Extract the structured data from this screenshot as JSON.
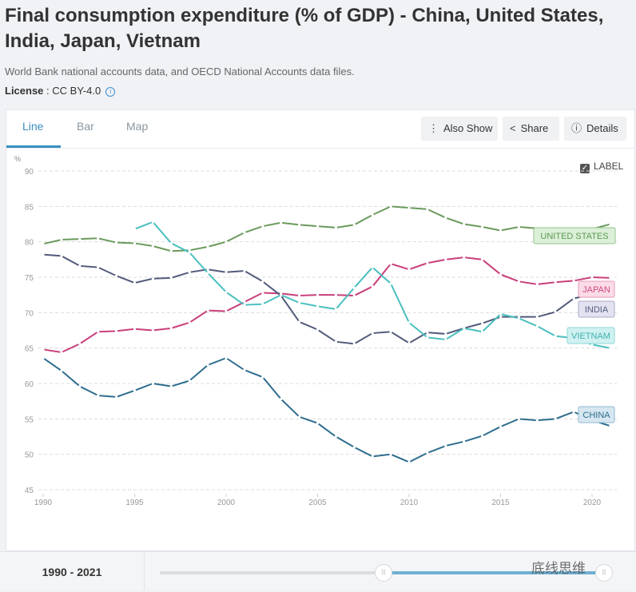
{
  "header": {
    "title": "Final consumption expenditure (% of GDP) - China, United States, India, Japan, Vietnam",
    "source": "World Bank national accounts data, and OECD National Accounts data files.",
    "license_label": "License",
    "license_value": " : CC BY-4.0",
    "info_icon": "i"
  },
  "tabs": [
    {
      "label": "Line"
    },
    {
      "label": "Bar"
    },
    {
      "label": "Map"
    }
  ],
  "toolbar": {
    "also_show": "Also Show",
    "share": "Share",
    "details": "Details"
  },
  "label_toggle": {
    "label": "LABEL",
    "checked": true
  },
  "footer": {
    "range": "1990 - 2021",
    "watermark": "底线思维"
  },
  "chart_data": {
    "type": "line",
    "title": "Final consumption expenditure (% of GDP)",
    "ylabel": "%",
    "ylim": [
      45,
      90
    ],
    "yticks": [
      45,
      50,
      55,
      60,
      65,
      70,
      75,
      80,
      85,
      90
    ],
    "xticks": [
      1990,
      1995,
      2000,
      2005,
      2010,
      2015,
      2020
    ],
    "xlim": [
      1990,
      2021
    ],
    "grid": true,
    "x_start": 1990,
    "series": [
      {
        "name": "UNITED STATES",
        "color": "#6a9a5c",
        "label_bg": "#dcefd8",
        "label_border": "#93c48b",
        "label_text": "#5c9a52",
        "values": [
          79.7,
          80.3,
          80.4,
          80.5,
          79.9,
          79.8,
          79.4,
          78.7,
          78.8,
          79.3,
          80.0,
          81.3,
          82.2,
          82.7,
          82.4,
          82.2,
          82.0,
          82.4,
          83.8,
          85.0,
          84.8,
          84.6,
          83.4,
          82.5,
          82.1,
          81.6,
          82.1,
          81.9,
          81.8,
          81.8,
          81.8,
          82.5
        ]
      },
      {
        "name": "JAPAN",
        "color": "#c93f7b",
        "label_bg": "#fadbe7",
        "label_border": "#e79ab9",
        "label_text": "#d04b80",
        "values": [
          64.8,
          64.4,
          65.6,
          67.3,
          67.4,
          67.7,
          67.5,
          67.8,
          68.6,
          70.3,
          70.2,
          71.5,
          72.8,
          72.7,
          72.4,
          72.5,
          72.5,
          72.4,
          73.7,
          76.9,
          76.1,
          77.0,
          77.5,
          77.8,
          77.5,
          75.4,
          74.4,
          74.0,
          74.3,
          74.5,
          75.0,
          74.9
        ]
      },
      {
        "name": "INDIA",
        "color": "#525a7a",
        "label_bg": "#e2e2f0",
        "label_border": "#a9abc8",
        "label_text": "#555a80",
        "values": [
          78.2,
          78.0,
          76.6,
          76.4,
          75.2,
          74.2,
          74.8,
          74.9,
          75.7,
          76.1,
          75.7,
          75.9,
          74.4,
          72.4,
          68.7,
          67.6,
          65.9,
          65.6,
          67.1,
          67.3,
          65.7,
          67.2,
          67.0,
          67.8,
          68.5,
          69.4,
          69.4,
          69.4,
          70.1,
          72.0,
          72.6,
          72.5
        ]
      },
      {
        "name": "VIETNAM",
        "color": "#4bbfbf",
        "label_bg": "#d0f1f1",
        "label_border": "#8fd6d6",
        "label_text": "#3fb0b0",
        "values": [
          null,
          null,
          null,
          null,
          null,
          81.8,
          82.8,
          79.8,
          78.5,
          75.6,
          72.9,
          71.1,
          71.2,
          72.5,
          71.4,
          70.9,
          70.5,
          73.5,
          76.4,
          74.1,
          68.6,
          66.5,
          66.2,
          67.8,
          67.3,
          69.8,
          69.2,
          68.1,
          66.7,
          66.4,
          65.5,
          65.0
        ]
      },
      {
        "name": "CHINA",
        "color": "#2e6d8e",
        "label_bg": "#d6e7f2",
        "label_border": "#92b9d2",
        "label_text": "#2f6b8a",
        "values": [
          63.6,
          61.8,
          59.6,
          58.3,
          58.1,
          59.0,
          60.0,
          59.6,
          60.4,
          62.6,
          63.6,
          61.9,
          60.9,
          57.8,
          55.3,
          54.4,
          52.5,
          51.0,
          49.7,
          50.0,
          48.9,
          50.2,
          51.2,
          51.8,
          52.6,
          53.9,
          55.0,
          54.8,
          55.0,
          56.0,
          54.8,
          54.0
        ]
      }
    ]
  }
}
